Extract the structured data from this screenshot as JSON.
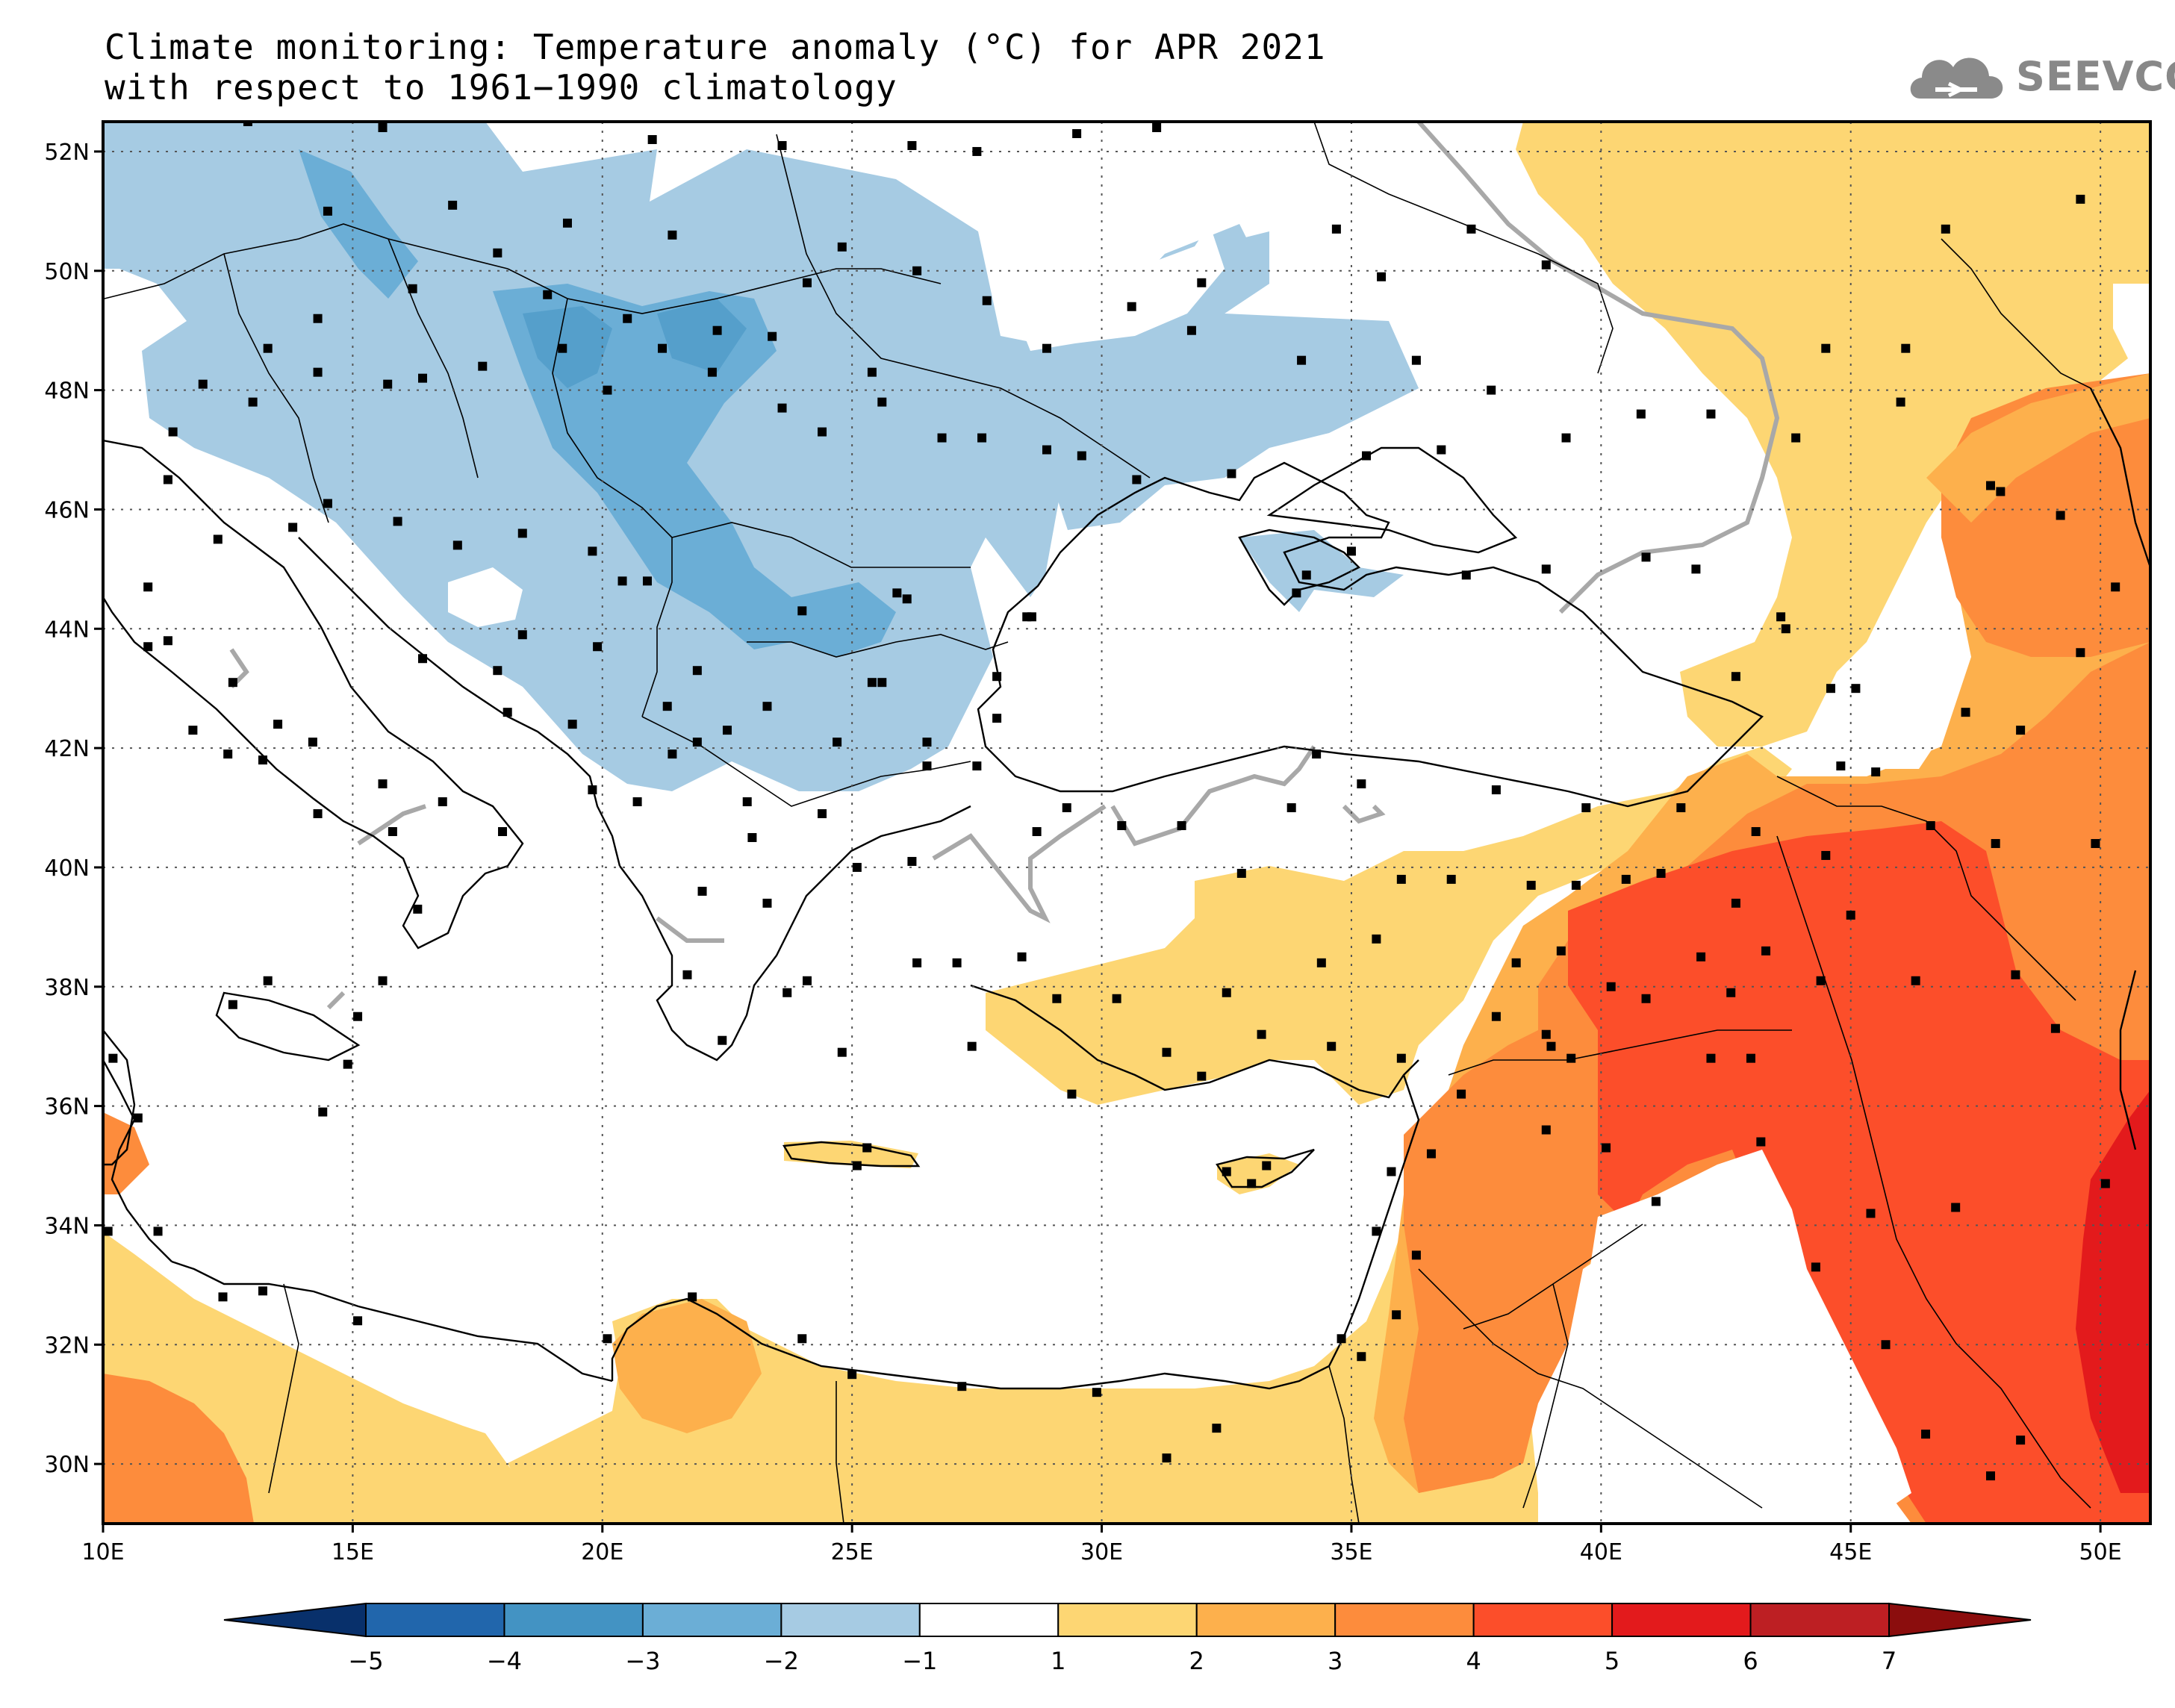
{
  "title": {
    "line1": "Climate monitoring: Temperature anomaly (°C) for APR 2021",
    "line2": "with respect to 1961−1990 climatology"
  },
  "logo": {
    "text": "SEEVCCC",
    "icon": "cloud-icon"
  },
  "map": {
    "lon_range": [
      10,
      51
    ],
    "lat_range": [
      29,
      52.5
    ],
    "lon_ticks": [
      {
        "v": 10,
        "label": "10E"
      },
      {
        "v": 15,
        "label": "15E"
      },
      {
        "v": 20,
        "label": "20E"
      },
      {
        "v": 25,
        "label": "25E"
      },
      {
        "v": 30,
        "label": "30E"
      },
      {
        "v": 35,
        "label": "35E"
      },
      {
        "v": 40,
        "label": "40E"
      },
      {
        "v": 45,
        "label": "45E"
      },
      {
        "v": 50,
        "label": "50E"
      }
    ],
    "lat_ticks": [
      {
        "v": 30,
        "label": "30N"
      },
      {
        "v": 32,
        "label": "32N"
      },
      {
        "v": 34,
        "label": "34N"
      },
      {
        "v": 36,
        "label": "36N"
      },
      {
        "v": 38,
        "label": "38N"
      },
      {
        "v": 40,
        "label": "40N"
      },
      {
        "v": 42,
        "label": "42N"
      },
      {
        "v": 44,
        "label": "44N"
      },
      {
        "v": 46,
        "label": "46N"
      },
      {
        "v": 48,
        "label": "48N"
      },
      {
        "v": 50,
        "label": "50N"
      },
      {
        "v": 52,
        "label": "52N"
      }
    ],
    "grid": "dotted"
  },
  "colorbar": {
    "colors": [
      "#08306b",
      "#2166ac",
      "#4393c3",
      "#6baed6",
      "#a6cbe3",
      "#ffffff",
      "#fdd673",
      "#fdb04c",
      "#fd8c3c",
      "#fc4e2a",
      "#e31a1c",
      "#bd1f23",
      "#8b0d0d"
    ],
    "labels": [
      "−5",
      "−4",
      "−3",
      "−2",
      "−1",
      "1",
      "2",
      "3",
      "4",
      "5",
      "6",
      "7"
    ]
  }
}
